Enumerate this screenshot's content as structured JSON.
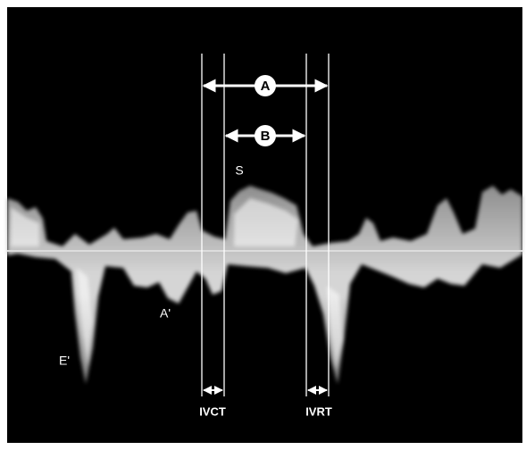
{
  "labels": {
    "a": "A",
    "b": "B",
    "s": "S",
    "e_prime": "E'",
    "a_prime": "A'",
    "ivct": "IVCT",
    "ivrt": "IVRT"
  }
}
